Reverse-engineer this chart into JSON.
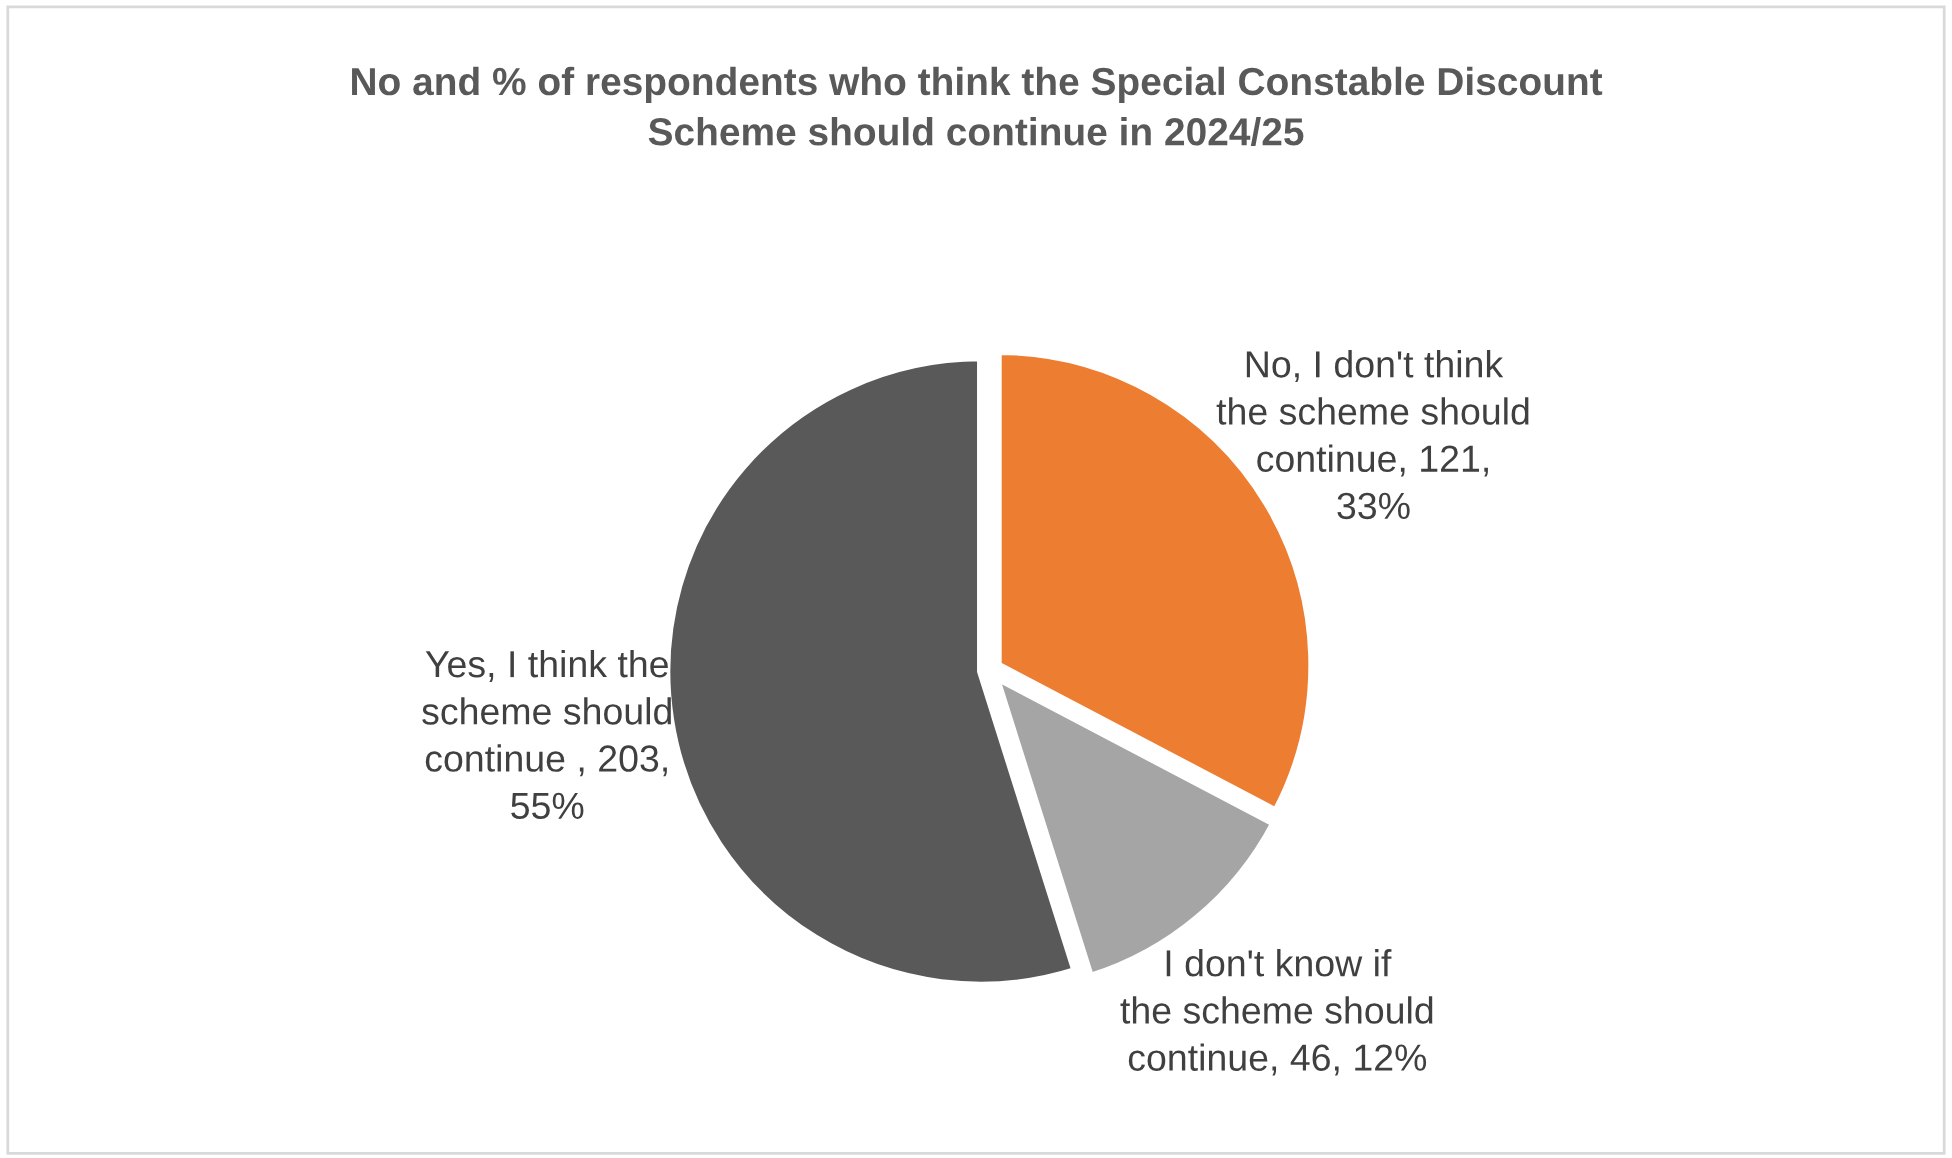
{
  "chart_data": {
    "type": "pie",
    "title": "No and % of respondents who think the Special Constable Discount Scheme should continue in 2024/25",
    "categories": [
      "No, I don't think the scheme should continue",
      "I don't know if the scheme should continue",
      "Yes, I think the scheme should continue "
    ],
    "values": [
      121,
      46,
      203
    ],
    "colors": [
      "#ed7d31",
      "#a5a5a5",
      "#595959"
    ],
    "value_labels": [
      "121, 33%",
      "46, 12%",
      "203, 55%"
    ]
  }
}
